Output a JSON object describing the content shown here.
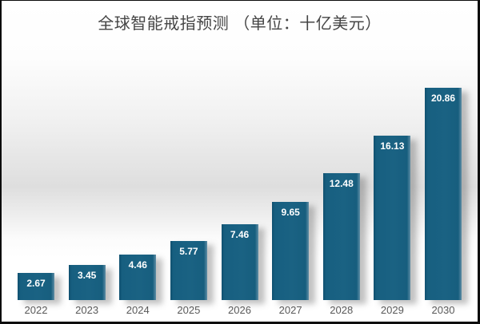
{
  "chart_data": {
    "type": "bar",
    "title": "全球智能戒指预测 （单位：十亿美元）",
    "unit": "十亿美元",
    "categories": [
      "2022",
      "2023",
      "2024",
      "2025",
      "2026",
      "2027",
      "2028",
      "2029",
      "2030"
    ],
    "values": [
      2.67,
      3.45,
      4.46,
      5.77,
      7.46,
      9.65,
      12.48,
      16.13,
      20.86
    ],
    "xlabel": "",
    "ylabel": "",
    "ylim": [
      0,
      22
    ],
    "grid": false,
    "legend": false,
    "bar_color": "#175f80",
    "value_label_color": "#ffffff",
    "axis_label_color": "#595959",
    "title_color": "#454545",
    "frame_color": "#0c0c0c"
  }
}
